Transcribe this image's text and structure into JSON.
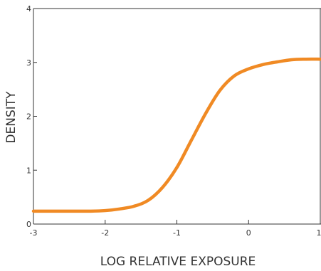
{
  "chart_data": {
    "type": "line",
    "title": "",
    "xlabel": "LOG RELATIVE EXPOSURE",
    "ylabel": "DENSITY",
    "xlim": [
      -3,
      1
    ],
    "ylim": [
      0,
      4
    ],
    "x_ticks": [
      -3,
      -2,
      -1,
      0,
      1
    ],
    "y_ticks": [
      0,
      1,
      2,
      3,
      4
    ],
    "x_tick_labels": [
      "-3",
      "-2",
      "-1",
      "0",
      "1"
    ],
    "y_tick_labels": [
      "0",
      "1",
      "2",
      "3",
      "4"
    ],
    "grid": false,
    "series": [
      {
        "color": "#F08A24",
        "x": [
          -3.0,
          -2.5,
          -2.2,
          -2.0,
          -1.8,
          -1.6,
          -1.4,
          -1.2,
          -1.0,
          -0.8,
          -0.6,
          -0.4,
          -0.2,
          0.0,
          0.2,
          0.4,
          0.6,
          0.8,
          1.0
        ],
        "y": [
          0.24,
          0.24,
          0.24,
          0.25,
          0.28,
          0.33,
          0.44,
          0.68,
          1.05,
          1.55,
          2.05,
          2.48,
          2.75,
          2.88,
          2.96,
          3.01,
          3.05,
          3.06,
          3.06
        ]
      }
    ]
  }
}
